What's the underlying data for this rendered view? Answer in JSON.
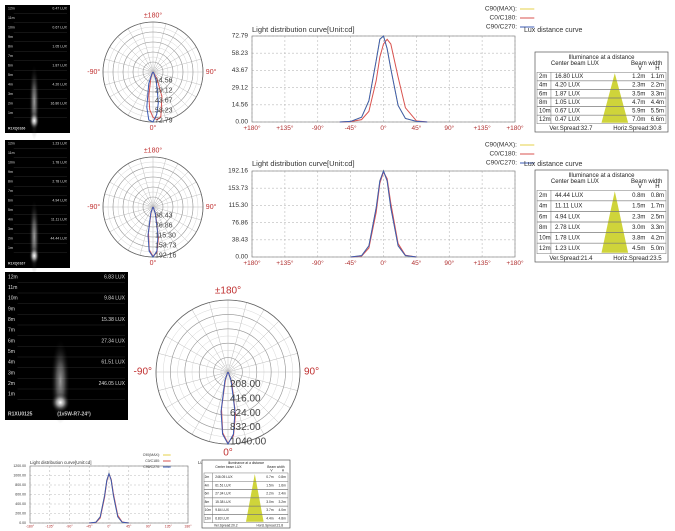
{
  "chart_data": [
    {
      "type": "line",
      "title": "Light distribution curve[Unit:cd]",
      "xlim": [
        -180,
        180
      ],
      "xticks": [
        {
          "value": -180,
          "label": "+180°"
        },
        {
          "value": -135,
          "label": "+135°"
        },
        {
          "value": -90,
          "label": "-90°"
        },
        {
          "value": -45,
          "label": "-45°"
        },
        {
          "value": 0,
          "label": "0°"
        },
        {
          "value": 45,
          "label": "45°"
        },
        {
          "value": 90,
          "label": "90°"
        },
        {
          "value": 135,
          "label": "+135°"
        },
        {
          "value": 180,
          "label": "+180°"
        }
      ],
      "ylim": [
        0,
        72.79
      ],
      "yticks": [
        {
          "value": 0,
          "label": "0.00"
        },
        14.56,
        29.12,
        43.67,
        58.23,
        72.79
      ],
      "grid": true,
      "x": [
        -60,
        -45,
        -30,
        -20,
        -10,
        -5,
        0,
        5,
        10,
        20,
        30,
        45,
        60
      ],
      "series": [
        {
          "name": "C90(MAX):",
          "color": "#e6d24a",
          "values": [
            0,
            0.5,
            4,
            18,
            52,
            70,
            72.79,
            62,
            45,
            14,
            3,
            0.5,
            0
          ]
        },
        {
          "name": "C0/C180:",
          "color": "#d9534f",
          "values": [
            0,
            0.3,
            2,
            9,
            35,
            55,
            66,
            70,
            66,
            38,
            12,
            1,
            0
          ]
        },
        {
          "name": "C90/C270:",
          "color": "#3b5bb5",
          "values": [
            0,
            0.5,
            4,
            18,
            52,
            70,
            72.79,
            62,
            45,
            14,
            3,
            0.5,
            0
          ]
        }
      ]
    },
    {
      "type": "polar",
      "angle_labels": [
        {
          "value": 180,
          "label": "±180°"
        },
        {
          "value": -90,
          "label": "-90°"
        },
        {
          "value": 90,
          "label": "90°"
        },
        {
          "value": 0,
          "label": "0°"
        }
      ],
      "rlim": [
        0,
        72.79
      ],
      "rticks": [
        14.56,
        29.12,
        43.67,
        58.23,
        72.79
      ],
      "x": [
        -60,
        -45,
        -30,
        -20,
        -10,
        -5,
        0,
        5,
        10,
        20,
        30,
        45,
        60
      ],
      "series": [
        {
          "name": "C0/C180",
          "color": "#d9534f",
          "values": [
            0,
            0.3,
            2,
            9,
            35,
            55,
            66,
            70,
            66,
            38,
            12,
            1,
            0
          ]
        },
        {
          "name": "C90/C270",
          "color": "#3b5bb5",
          "values": [
            0,
            0.5,
            4,
            18,
            52,
            70,
            72.79,
            62,
            45,
            14,
            3,
            0.5,
            0
          ]
        }
      ]
    },
    {
      "type": "line",
      "title": "Light distribution curve[Unit:cd]",
      "xlim": [
        -180,
        180
      ],
      "xticks": [
        {
          "value": -180,
          "label": "+180°"
        },
        {
          "value": -135,
          "label": "+135°"
        },
        {
          "value": -90,
          "label": "-90°"
        },
        {
          "value": -45,
          "label": "-45°"
        },
        {
          "value": 0,
          "label": "0°"
        },
        {
          "value": 45,
          "label": "45°"
        },
        {
          "value": 90,
          "label": "90°"
        },
        {
          "value": 135,
          "label": "+135°"
        },
        {
          "value": 180,
          "label": "+180°"
        }
      ],
      "ylim": [
        0,
        192.16
      ],
      "yticks": [
        {
          "value": 0,
          "label": "0.00"
        },
        38.43,
        76.86,
        {
          "value": 115.3,
          "label": "115.30"
        },
        153.73,
        192.16
      ],
      "grid": true,
      "x": [
        -45,
        -30,
        -20,
        -10,
        -5,
        0,
        5,
        10,
        20,
        30,
        45
      ],
      "series": [
        {
          "name": "C90(MAX):",
          "color": "#e6d24a",
          "values": [
            0,
            3,
            25,
            110,
            170,
            192.16,
            170,
            110,
            25,
            3,
            0
          ]
        },
        {
          "name": "C0/C180:",
          "color": "#d9534f",
          "values": [
            0,
            2,
            20,
            100,
            165,
            190,
            175,
            120,
            30,
            4,
            0
          ]
        },
        {
          "name": "C90/C270:",
          "color": "#3b5bb5",
          "values": [
            0,
            3,
            25,
            110,
            170,
            192.16,
            170,
            110,
            25,
            3,
            0
          ]
        }
      ]
    },
    {
      "type": "polar",
      "angle_labels": [
        {
          "value": 180,
          "label": "±180°"
        },
        {
          "value": -90,
          "label": "-90°"
        },
        {
          "value": 90,
          "label": "90°"
        },
        {
          "value": 0,
          "label": "0°"
        }
      ],
      "rlim": [
        0,
        192.16
      ],
      "rticks": [
        38.43,
        76.86,
        {
          "value": 115.3,
          "label": "115.30"
        },
        153.73,
        192.16
      ],
      "x": [
        -45,
        -30,
        -20,
        -10,
        -5,
        0,
        5,
        10,
        20,
        30,
        45
      ],
      "series": [
        {
          "name": "C0/C180",
          "color": "#d9534f",
          "values": [
            0,
            2,
            20,
            100,
            165,
            190,
            175,
            120,
            30,
            4,
            0
          ]
        },
        {
          "name": "C90/C270",
          "color": "#3b5bb5",
          "values": [
            0,
            3,
            25,
            110,
            170,
            192.16,
            170,
            110,
            25,
            3,
            0
          ]
        }
      ]
    },
    {
      "type": "polar",
      "angle_labels": [
        {
          "value": 180,
          "label": "±180°"
        },
        {
          "value": -90,
          "label": "-90°"
        },
        {
          "value": 90,
          "label": "90°"
        },
        {
          "value": 0,
          "label": "0°"
        }
      ],
      "rlim": [
        0,
        1040
      ],
      "rticks": [
        {
          "value": 208,
          "label": "208.00"
        },
        {
          "value": 416,
          "label": "416.00"
        },
        {
          "value": 624,
          "label": "624.00"
        },
        {
          "value": 832,
          "label": "832.00"
        },
        {
          "value": 1040,
          "label": "1040.00"
        }
      ],
      "x": [
        -45,
        -30,
        -20,
        -10,
        -5,
        0,
        5,
        10,
        20,
        30,
        45
      ],
      "series": [
        {
          "name": "C0/C180",
          "color": "#d9534f",
          "values": [
            0,
            10,
            105,
            540,
            880,
            1030,
            920,
            620,
            160,
            20,
            0
          ]
        },
        {
          "name": "C90/C270",
          "color": "#3b5bb5",
          "values": [
            0,
            15,
            130,
            580,
            900,
            1040,
            900,
            580,
            130,
            15,
            0
          ]
        }
      ]
    },
    {
      "type": "line",
      "title": "Light distribution curve[Unit:cd]",
      "xlim": [
        -180,
        180
      ],
      "xticks": [
        {
          "value": -180,
          "label": "-180°"
        },
        {
          "value": -135,
          "label": "-135°"
        },
        {
          "value": -90,
          "label": "-90°"
        },
        {
          "value": -45,
          "label": "-45°"
        },
        {
          "value": 0,
          "label": "0°"
        },
        {
          "value": 45,
          "label": "45°"
        },
        {
          "value": 90,
          "label": "90°"
        },
        {
          "value": 135,
          "label": "135°"
        },
        {
          "value": 180,
          "label": "180°"
        }
      ],
      "ylim": [
        0,
        1200
      ],
      "yticks": [
        {
          "value": 0,
          "label": "0.00"
        },
        {
          "value": 200,
          "label": "200.00"
        },
        {
          "value": 400,
          "label": "400.00"
        },
        {
          "value": 600,
          "label": "600.00"
        },
        {
          "value": 800,
          "label": "800.00"
        },
        {
          "value": 1000,
          "label": "1000.00"
        },
        {
          "value": 1200,
          "label": "1200.00"
        }
      ],
      "grid": true,
      "x": [
        -45,
        -30,
        -20,
        -10,
        -5,
        0,
        5,
        10,
        20,
        30,
        45
      ],
      "series": [
        {
          "name": "C90(MAX):",
          "color": "#e6d24a",
          "values": [
            0,
            15,
            130,
            580,
            900,
            1040,
            900,
            580,
            130,
            15,
            0
          ]
        },
        {
          "name": "C0/C180:",
          "color": "#d9534f",
          "values": [
            0,
            10,
            105,
            540,
            880,
            1030,
            920,
            620,
            160,
            20,
            0
          ]
        },
        {
          "name": "C90/C270:",
          "color": "#3b5bb5",
          "values": [
            0,
            15,
            130,
            580,
            900,
            1040,
            900,
            580,
            130,
            15,
            0
          ]
        }
      ]
    }
  ],
  "photos": [
    {
      "distances": [
        "12m",
        "11m",
        "10m",
        "9m",
        "8m",
        "7m",
        "6m",
        "5m",
        "4m",
        "3m",
        "2m",
        "1m"
      ],
      "lux": [
        "0.47 LUX",
        "0.67 LUX",
        "1.05 LUX",
        "1.87 LUX",
        "4.20 LUX",
        "16.80 LUX"
      ],
      "caption": [
        "R1XQ0166"
      ]
    },
    {
      "distances": [
        "12m",
        "11m",
        "10m",
        "9m",
        "8m",
        "7m",
        "6m",
        "5m",
        "4m",
        "3m",
        "2m",
        "1m"
      ],
      "lux": [
        "1.23 LUX",
        "1.78 LUX",
        "2.78 LUX",
        "4.94 LUX",
        "11.11 LUX",
        "44.44 LUX"
      ],
      "caption": [
        "R1XQ0167"
      ]
    },
    {
      "distances": [
        "12m",
        "11m",
        "10m",
        "9m",
        "8m",
        "7m",
        "6m",
        "5m",
        "4m",
        "3m",
        "2m",
        "1m"
      ],
      "lux": [
        "6.83 LUX",
        "9.84 LUX",
        "15.38 LUX",
        "27.34 LUX",
        "61.51 LUX",
        "246.05 LUX"
      ],
      "caption": [
        "R1XU0125",
        "(1x5W-R7-24°)"
      ]
    }
  ],
  "tables": [
    {
      "heading": "Lux distance curve",
      "title": "Illuminance at a distance",
      "col_lux": "Center beam LUX",
      "col_width": "Beam width",
      "v": "V",
      "h": "H",
      "rows": [
        [
          "2m",
          "16.80 LUX",
          "1.2m",
          "1.1m"
        ],
        [
          "4m",
          "4.20 LUX",
          "2.3m",
          "2.2m"
        ],
        [
          "6m",
          "1.87 LUX",
          "3.5m",
          "3.3m"
        ],
        [
          "8m",
          "1.05 LUX",
          "4.7m",
          "4.4m"
        ],
        [
          "10m",
          "0.67 LUX",
          "5.9m",
          "5.5m"
        ],
        [
          "12m",
          "0.47 LUX",
          "7.0m",
          "6.6m"
        ]
      ],
      "ver": "Ver.Spread:32.7",
      "hor": "Horiz.Spread:30.8"
    },
    {
      "heading": "Lux distance curve",
      "title": "Illuminance at a distance",
      "col_lux": "Center beam LUX",
      "col_width": "Beam width",
      "v": "V",
      "h": "H",
      "rows": [
        [
          "2m",
          "44.44 LUX",
          "0.8m",
          "0.8m"
        ],
        [
          "4m",
          "11.11 LUX",
          "1.5m",
          "1.7m"
        ],
        [
          "6m",
          "4.94 LUX",
          "2.3m",
          "2.5m"
        ],
        [
          "8m",
          "2.78 LUX",
          "3.0m",
          "3.3m"
        ],
        [
          "10m",
          "1.78 LUX",
          "3.8m",
          "4.2m"
        ],
        [
          "12m",
          "1.23 LUX",
          "4.5m",
          "5.0m"
        ]
      ],
      "ver": "Ver.Spread:21.4",
      "hor": "Horiz.Spread:23.5"
    },
    {
      "heading": "Lux distance curve",
      "title": "Illuminance at a distance",
      "col_lux": "Center beam LUX",
      "col_width": "Beam width",
      "v": "V",
      "h": "H",
      "rows": [
        [
          "2m",
          "246.05 LUX",
          "0.7m",
          "0.8m"
        ],
        [
          "4m",
          "61.51 LUX",
          "1.5m",
          "1.6m"
        ],
        [
          "6m",
          "27.34 LUX",
          "2.2m",
          "2.4m"
        ],
        [
          "8m",
          "15.38 LUX",
          "3.0m",
          "3.2m"
        ],
        [
          "10m",
          "9.84 LUX",
          "3.7m",
          "4.0m"
        ],
        [
          "12m",
          "6.83 LUX",
          "4.4m",
          "4.8m"
        ]
      ],
      "ver": "Ver.Spread:20.2",
      "hor": "Horiz.Spread:21.8"
    }
  ]
}
